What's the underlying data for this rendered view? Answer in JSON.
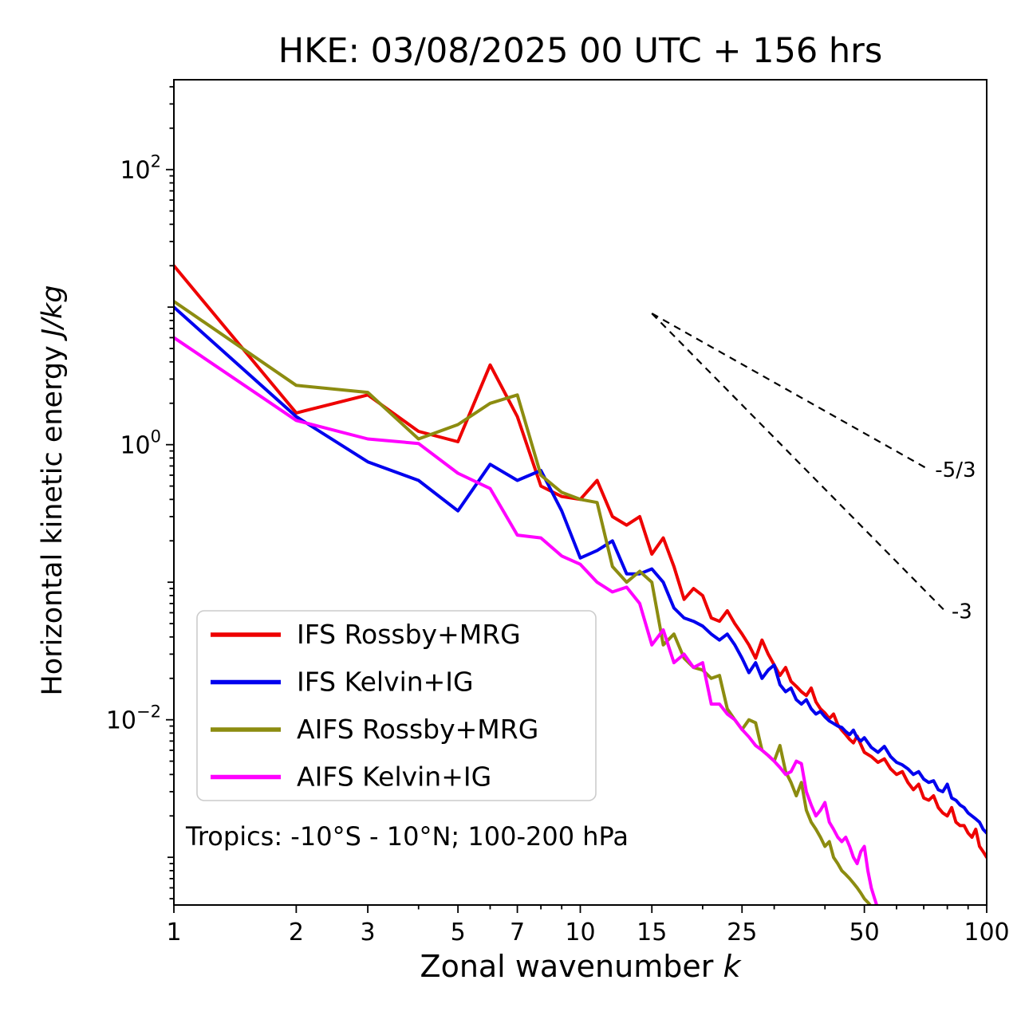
{
  "chart_data": {
    "type": "line",
    "title": "HKE: 03/08/2025 00 UTC + 156 hrs",
    "xlabel": "Zonal wavenumber k",
    "xlabel_prefix": "Zonal wavenumber ",
    "xlabel_math": "k",
    "ylabel": "Horizontal kinetic energy J/kg",
    "ylabel_prefix": "Horizontal kinetic energy ",
    "ylabel_math": "J/kg",
    "xscale": "log",
    "yscale": "log",
    "xlim": [
      1,
      100
    ],
    "ylim": [
      0.00045,
      450
    ],
    "grid": false,
    "legend_position": "lower-left",
    "x_major_ticks": [
      1,
      2,
      3,
      5,
      7,
      10,
      15,
      25,
      50,
      100
    ],
    "x_minor_ticks": [
      4,
      6,
      8,
      9,
      20,
      30,
      40,
      60,
      70,
      80,
      90
    ],
    "y_labeled_exponents": [
      2,
      0,
      -2
    ],
    "y_decade_exponents": [
      2,
      1,
      0,
      -1,
      -2,
      -3
    ],
    "annotation": "Tropics: -10°S - 10°N; 100-200 hPa",
    "reference_lines": [
      {
        "label": "-5/3",
        "x": [
          15,
          72
        ],
        "y": [
          9,
          0.66
        ]
      },
      {
        "label": "-3",
        "x": [
          15,
          79
        ],
        "y": [
          9,
          0.0617
        ]
      }
    ],
    "series": [
      {
        "name": "IFS Rossby+MRG",
        "color": "#ee0000",
        "x": [
          1,
          2,
          3,
          4,
          5,
          6,
          7,
          8,
          9,
          10,
          11,
          12,
          13,
          14,
          15,
          16,
          17,
          18,
          19,
          20,
          21,
          22,
          23,
          24,
          25,
          26,
          27,
          28,
          29,
          30,
          31,
          32,
          33,
          34,
          35,
          36,
          37,
          38,
          39,
          40,
          41,
          42,
          43,
          44,
          45,
          46,
          47,
          48,
          49,
          50,
          52,
          54,
          56,
          58,
          60,
          62,
          64,
          66,
          68,
          70,
          72,
          74,
          76,
          78,
          80,
          82,
          84,
          86,
          88,
          90,
          92,
          94,
          96,
          98,
          100
        ],
        "y": [
          20,
          1.7,
          2.3,
          1.25,
          1.05,
          3.8,
          1.6,
          0.5,
          0.42,
          0.4,
          0.55,
          0.3,
          0.26,
          0.3,
          0.16,
          0.21,
          0.13,
          0.075,
          0.09,
          0.08,
          0.055,
          0.052,
          0.062,
          0.05,
          0.042,
          0.035,
          0.028,
          0.038,
          0.03,
          0.025,
          0.021,
          0.024,
          0.019,
          0.0175,
          0.016,
          0.015,
          0.017,
          0.0135,
          0.012,
          0.0112,
          0.0102,
          0.011,
          0.0092,
          0.0084,
          0.0078,
          0.0072,
          0.0068,
          0.0076,
          0.0066,
          0.0058,
          0.0054,
          0.0049,
          0.0052,
          0.0044,
          0.004,
          0.0042,
          0.0035,
          0.0031,
          0.0034,
          0.0027,
          0.0026,
          0.0028,
          0.0023,
          0.0021,
          0.002,
          0.0023,
          0.0018,
          0.0017,
          0.0017,
          0.0015,
          0.0014,
          0.0016,
          0.0012,
          0.0011,
          0.001
        ]
      },
      {
        "name": "IFS Kelvin+IG",
        "color": "#0000ee",
        "x": [
          1,
          2,
          3,
          4,
          5,
          6,
          7,
          8,
          9,
          10,
          11,
          12,
          13,
          14,
          15,
          16,
          17,
          18,
          19,
          20,
          21,
          22,
          23,
          24,
          25,
          26,
          27,
          28,
          29,
          30,
          31,
          32,
          33,
          34,
          35,
          36,
          37,
          38,
          39,
          40,
          41,
          42,
          43,
          44,
          45,
          46,
          47,
          48,
          49,
          50,
          52,
          54,
          56,
          58,
          60,
          62,
          64,
          66,
          68,
          70,
          72,
          74,
          76,
          78,
          80,
          82,
          84,
          86,
          88,
          90,
          92,
          94,
          96,
          98,
          100
        ],
        "y": [
          10,
          1.6,
          0.75,
          0.55,
          0.33,
          0.72,
          0.55,
          0.65,
          0.33,
          0.15,
          0.17,
          0.2,
          0.115,
          0.115,
          0.125,
          0.1,
          0.065,
          0.055,
          0.052,
          0.048,
          0.042,
          0.038,
          0.042,
          0.035,
          0.028,
          0.022,
          0.026,
          0.02,
          0.023,
          0.025,
          0.018,
          0.016,
          0.017,
          0.014,
          0.013,
          0.014,
          0.012,
          0.011,
          0.0115,
          0.0105,
          0.0098,
          0.0094,
          0.009,
          0.0088,
          0.0082,
          0.0078,
          0.0084,
          0.0074,
          0.007,
          0.0074,
          0.0063,
          0.0058,
          0.0064,
          0.0054,
          0.0049,
          0.0047,
          0.0044,
          0.004,
          0.0042,
          0.0037,
          0.0035,
          0.0036,
          0.0031,
          0.003,
          0.0034,
          0.0027,
          0.0026,
          0.0024,
          0.0023,
          0.0021,
          0.002,
          0.0019,
          0.0018,
          0.0016,
          0.0015
        ]
      },
      {
        "name": "AIFS Rossby+MRG",
        "color": "#8c8c10",
        "x": [
          1,
          2,
          3,
          4,
          5,
          6,
          7,
          8,
          9,
          10,
          11,
          12,
          13,
          14,
          15,
          16,
          17,
          18,
          19,
          20,
          21,
          22,
          23,
          24,
          25,
          26,
          27,
          28,
          29,
          30,
          31,
          32,
          33,
          34,
          35,
          36,
          37,
          38,
          39,
          40,
          41,
          42,
          43,
          44,
          45,
          46,
          47,
          48,
          49,
          50,
          51,
          52,
          53,
          54,
          55
        ],
        "y": [
          11,
          2.7,
          2.4,
          1.1,
          1.4,
          2.0,
          2.3,
          0.6,
          0.45,
          0.4,
          0.38,
          0.13,
          0.1,
          0.12,
          0.1,
          0.035,
          0.042,
          0.028,
          0.024,
          0.023,
          0.02,
          0.021,
          0.012,
          0.01,
          0.0085,
          0.01,
          0.0095,
          0.006,
          0.0055,
          0.005,
          0.0065,
          0.0042,
          0.0035,
          0.0028,
          0.0035,
          0.0022,
          0.0018,
          0.0016,
          0.0014,
          0.0012,
          0.0013,
          0.001,
          0.0009,
          0.0008,
          0.00075,
          0.0007,
          0.00065,
          0.0006,
          0.00055,
          0.0005,
          0.00047,
          0.00044,
          0.00042,
          0.0004,
          0.00037
        ]
      },
      {
        "name": "AIFS Kelvin+IG",
        "color": "#ff00ff",
        "x": [
          1,
          2,
          3,
          4,
          5,
          6,
          7,
          8,
          9,
          10,
          11,
          12,
          13,
          14,
          15,
          16,
          17,
          18,
          19,
          20,
          21,
          22,
          23,
          24,
          25,
          26,
          27,
          28,
          29,
          30,
          31,
          32,
          33,
          34,
          35,
          36,
          37,
          38,
          39,
          40,
          41,
          42,
          43,
          44,
          45,
          46,
          47,
          48,
          49,
          50,
          51,
          52,
          53,
          54
        ],
        "y": [
          6,
          1.5,
          1.1,
          1.02,
          0.62,
          0.48,
          0.22,
          0.21,
          0.155,
          0.135,
          0.1,
          0.085,
          0.092,
          0.07,
          0.035,
          0.045,
          0.026,
          0.03,
          0.024,
          0.026,
          0.013,
          0.013,
          0.011,
          0.01,
          0.0085,
          0.0075,
          0.0065,
          0.006,
          0.0055,
          0.005,
          0.0045,
          0.004,
          0.0042,
          0.005,
          0.0048,
          0.003,
          0.0024,
          0.002,
          0.0022,
          0.0025,
          0.0018,
          0.0016,
          0.0014,
          0.0013,
          0.0014,
          0.0012,
          0.001,
          0.0009,
          0.0011,
          0.0012,
          0.0008,
          0.0006,
          0.0005,
          0.00042
        ]
      }
    ]
  }
}
